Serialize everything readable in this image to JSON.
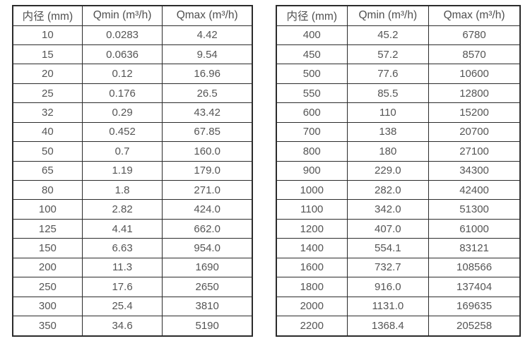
{
  "colors": {
    "background": "#ffffff",
    "border": "#2b2b2b",
    "text": "#555555"
  },
  "tables": [
    {
      "id": "small-diameters",
      "headers": [
        "内径 (mm)",
        "Qmin (m³/h)",
        "Qmax (m³/h)"
      ],
      "rows": [
        [
          "10",
          "0.0283",
          "4.42"
        ],
        [
          "15",
          "0.0636",
          "9.54"
        ],
        [
          "20",
          "0.12",
          "16.96"
        ],
        [
          "25",
          "0.176",
          "26.5"
        ],
        [
          "32",
          "0.29",
          "43.42"
        ],
        [
          "40",
          "0.452",
          "67.85"
        ],
        [
          "50",
          "0.7",
          "160.0"
        ],
        [
          "65",
          "1.19",
          "179.0"
        ],
        [
          "80",
          "1.8",
          "271.0"
        ],
        [
          "100",
          "2.82",
          "424.0"
        ],
        [
          "125",
          "4.41",
          "662.0"
        ],
        [
          "150",
          "6.63",
          "954.0"
        ],
        [
          "200",
          "11.3",
          "1690"
        ],
        [
          "250",
          "17.6",
          "2650"
        ],
        [
          "300",
          "25.4",
          "3810"
        ],
        [
          "350",
          "34.6",
          "5190"
        ]
      ]
    },
    {
      "id": "large-diameters",
      "headers": [
        "内径 (mm)",
        "Qmin (m³/h)",
        "Qmax (m³/h)"
      ],
      "rows": [
        [
          "400",
          "45.2",
          "6780"
        ],
        [
          "450",
          "57.2",
          "8570"
        ],
        [
          "500",
          "77.6",
          "10600"
        ],
        [
          "550",
          "85.5",
          "12800"
        ],
        [
          "600",
          "110",
          "15200"
        ],
        [
          "700",
          "138",
          "20700"
        ],
        [
          "800",
          "180",
          "27100"
        ],
        [
          "900",
          "229.0",
          "34300"
        ],
        [
          "1000",
          "282.0",
          "42400"
        ],
        [
          "1100",
          "342.0",
          "51300"
        ],
        [
          "1200",
          "407.0",
          "61000"
        ],
        [
          "1400",
          "554.1",
          "83121"
        ],
        [
          "1600",
          "732.7",
          "108566"
        ],
        [
          "1800",
          "916.0",
          "137404"
        ],
        [
          "2000",
          "1131.0",
          "169635"
        ],
        [
          "2200",
          "1368.4",
          "205258"
        ]
      ]
    }
  ]
}
